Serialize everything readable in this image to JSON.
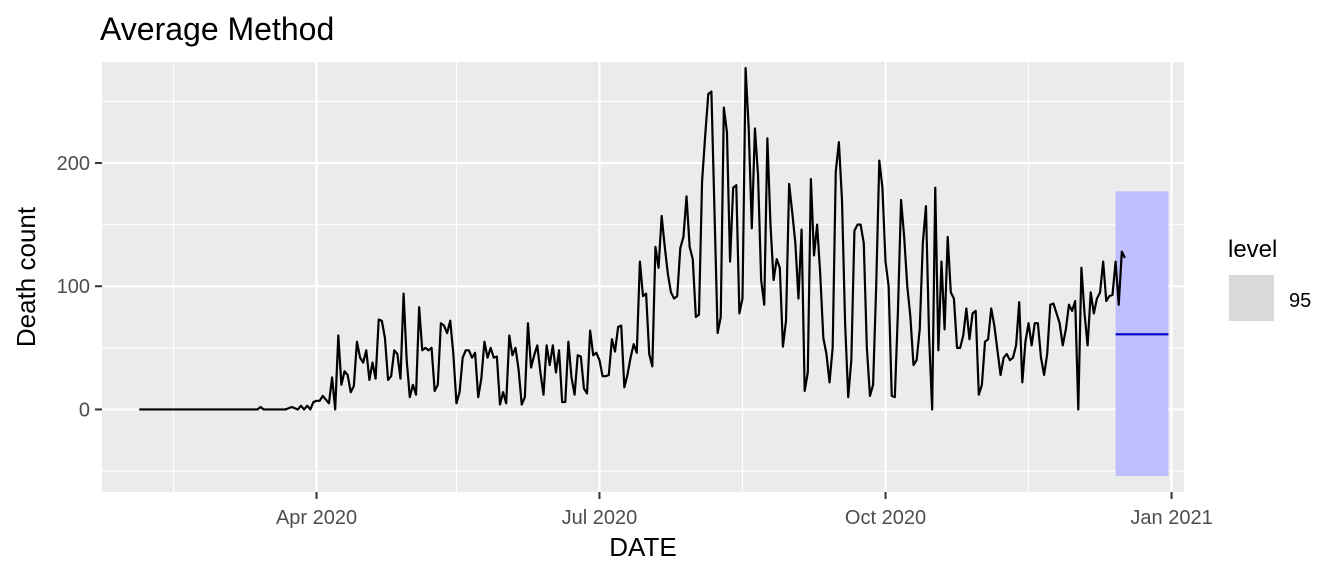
{
  "chart_data": {
    "type": "line",
    "title": "Average Method",
    "xlabel": "DATE",
    "ylabel": "Death count",
    "x_domain": [
      "2020-01-23",
      "2021-01-05"
    ],
    "ylim": [
      -67,
      282
    ],
    "x_ticks": [
      {
        "date": "2020-04-01",
        "label": "Apr 2020"
      },
      {
        "date": "2020-07-01",
        "label": "Jul 2020"
      },
      {
        "date": "2020-10-01",
        "label": "Oct 2020"
      },
      {
        "date": "2021-01-01",
        "label": "Jan 2021"
      }
    ],
    "x_minor_ticks": [
      "2020-02-15",
      "2020-05-16",
      "2020-08-16",
      "2020-11-16"
    ],
    "y_ticks": [
      0,
      100,
      200
    ],
    "y_minor_ticks": [
      -50,
      50,
      150,
      250
    ],
    "grid": true,
    "series": [
      {
        "type": "line",
        "color": "#000000",
        "x_start": "2020-02-04",
        "step_days": 1,
        "values": [
          0,
          0,
          0,
          0,
          0,
          0,
          0,
          0,
          0,
          0,
          0,
          0,
          0,
          0,
          0,
          0,
          0,
          0,
          0,
          0,
          0,
          0,
          0,
          0,
          0,
          0,
          0,
          0,
          0,
          0,
          0,
          0,
          0,
          0,
          0,
          0,
          0,
          0,
          0,
          2,
          0,
          0,
          0,
          0,
          0,
          0,
          0,
          0,
          1,
          2,
          1,
          0,
          3,
          0,
          3,
          0,
          6,
          7,
          7,
          11,
          8,
          5,
          26,
          0,
          60,
          20,
          31,
          28,
          14,
          19,
          55,
          42,
          38,
          48,
          24,
          38,
          25,
          73,
          72,
          58,
          24,
          27,
          48,
          45,
          25,
          94,
          40,
          10,
          20,
          12,
          83,
          48,
          50,
          48,
          50,
          15,
          20,
          70,
          68,
          62,
          72,
          45,
          5,
          14,
          42,
          48,
          48,
          42,
          46,
          10,
          25,
          55,
          42,
          50,
          42,
          43,
          4,
          14,
          5,
          60,
          44,
          50,
          32,
          4,
          10,
          70,
          34,
          44,
          52,
          30,
          12,
          52,
          36,
          52,
          30,
          48,
          6,
          6,
          55,
          26,
          12,
          44,
          43,
          17,
          13,
          64,
          44,
          46,
          40,
          27,
          27,
          28,
          57,
          47,
          67,
          68,
          18,
          28,
          42,
          53,
          46,
          120,
          92,
          94,
          45,
          35,
          132,
          115,
          157,
          132,
          110,
          95,
          90,
          92,
          131,
          140,
          173,
          132,
          122,
          75,
          77,
          185,
          222,
          256,
          258,
          160,
          62,
          75,
          245,
          225,
          120,
          180,
          182,
          78,
          90,
          277,
          228,
          147,
          228,
          190,
          105,
          85,
          220,
          150,
          105,
          122,
          115,
          51,
          72,
          183,
          160,
          135,
          90,
          146,
          15,
          30,
          187,
          125,
          150,
          110,
          58,
          45,
          22,
          50,
          193,
          217,
          170,
          70,
          10,
          40,
          145,
          150,
          150,
          135,
          50,
          11,
          20,
          100,
          202,
          180,
          120,
          100,
          11,
          10,
          80,
          170,
          140,
          100,
          75,
          36,
          40,
          65,
          135,
          165,
          60,
          0,
          180,
          48,
          120,
          65,
          140,
          95,
          90,
          50,
          50,
          60,
          82,
          57,
          78,
          80,
          12,
          20,
          55,
          57,
          82,
          68,
          48,
          28,
          42,
          45,
          40,
          42,
          52,
          87,
          22,
          55,
          70,
          52,
          70,
          70,
          42,
          28,
          45,
          85,
          86,
          78,
          70,
          52,
          65,
          85,
          80,
          88,
          0,
          115,
          78,
          52,
          95,
          78,
          90,
          95,
          120,
          88,
          92,
          93,
          120,
          85,
          128,
          123
        ]
      }
    ],
    "forecast": {
      "x_start": "2020-12-14",
      "x_end": "2020-12-31",
      "mean": 61,
      "lower": -54,
      "upper": 177,
      "line_color": "#0000cc",
      "band_color": "#bfbfff"
    },
    "legend": {
      "title": "level",
      "entries": [
        {
          "label": "95",
          "swatch_color": "#d9d9d9"
        }
      ],
      "position": "right"
    },
    "colors": {
      "panel_background": "#ebebeb",
      "grid": "#ffffff",
      "tick_text": "#4d4d4d"
    }
  }
}
